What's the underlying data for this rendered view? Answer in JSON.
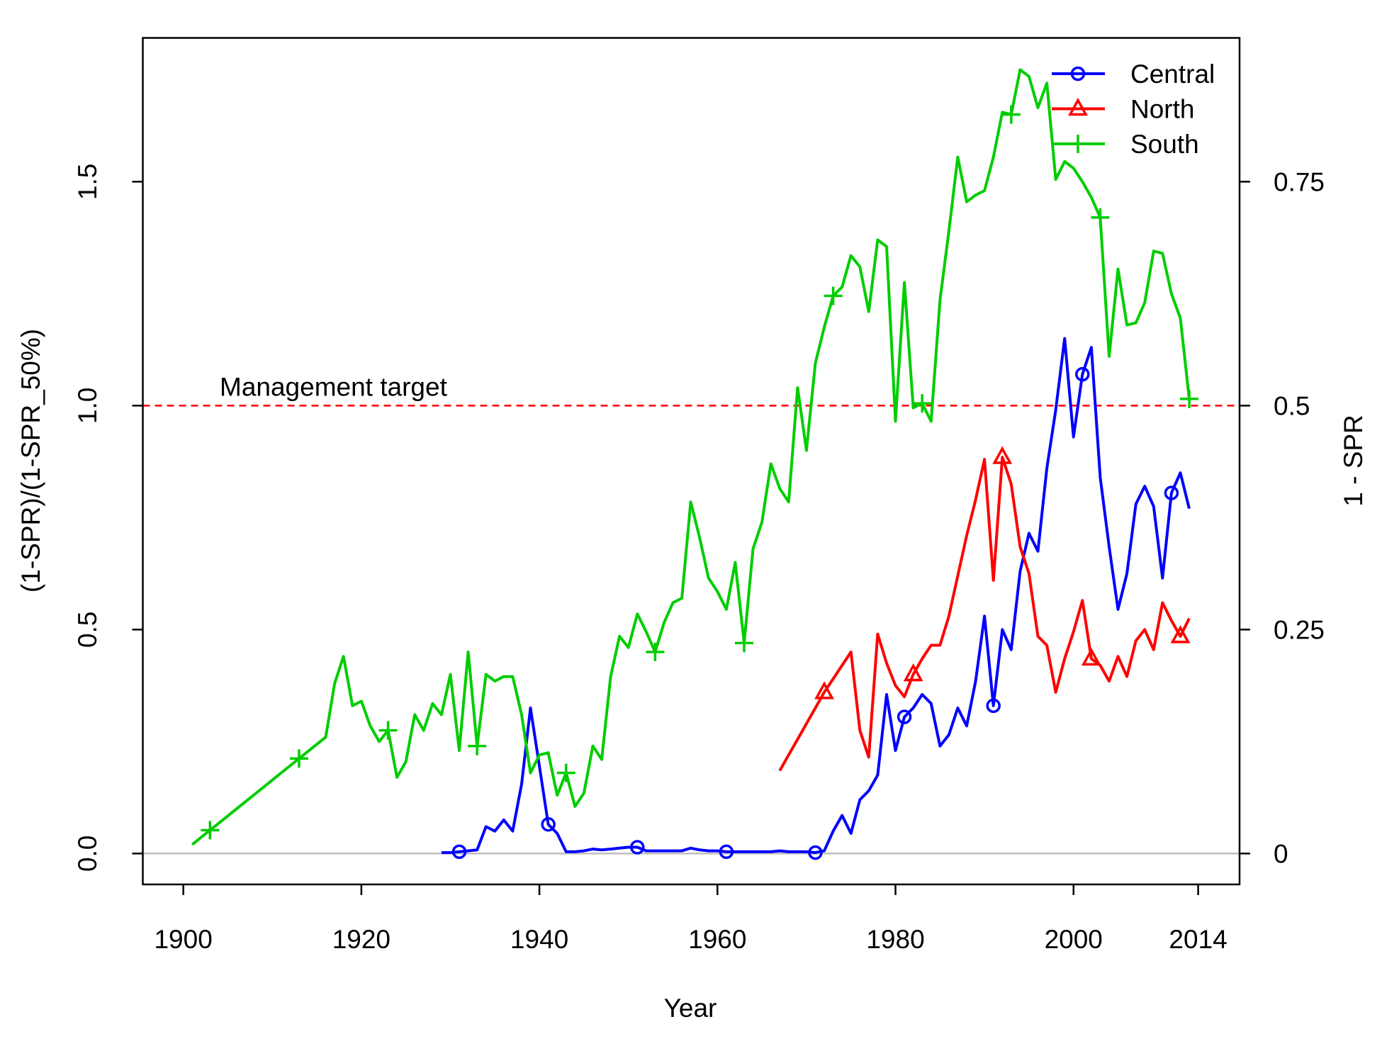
{
  "chart_data": {
    "type": "line",
    "x_label": "Year",
    "y_label": "(1-SPR)/(1-SPR_50%)",
    "y2_label": "1 - SPR",
    "x": [
      1901,
      1902,
      1903,
      1904,
      1905,
      1906,
      1907,
      1908,
      1909,
      1910,
      1911,
      1912,
      1913,
      1914,
      1915,
      1916,
      1917,
      1918,
      1919,
      1920,
      1921,
      1922,
      1923,
      1924,
      1925,
      1926,
      1927,
      1928,
      1929,
      1930,
      1931,
      1932,
      1933,
      1934,
      1935,
      1936,
      1937,
      1938,
      1939,
      1940,
      1941,
      1942,
      1943,
      1944,
      1945,
      1946,
      1947,
      1948,
      1949,
      1950,
      1951,
      1952,
      1953,
      1954,
      1955,
      1956,
      1957,
      1958,
      1959,
      1960,
      1961,
      1962,
      1963,
      1964,
      1965,
      1966,
      1967,
      1968,
      1969,
      1970,
      1971,
      1972,
      1973,
      1974,
      1975,
      1976,
      1977,
      1978,
      1979,
      1980,
      1981,
      1982,
      1983,
      1984,
      1985,
      1986,
      1987,
      1988,
      1989,
      1990,
      1991,
      1992,
      1993,
      1994,
      1995,
      1996,
      1997,
      1998,
      1999,
      2000,
      2001,
      2002,
      2003,
      2004,
      2005,
      2006,
      2007,
      2008,
      2009,
      2010,
      2011,
      2012,
      2013
    ],
    "series": [
      {
        "name": "Central",
        "color": "#0000ff",
        "marker": "circle",
        "values": [
          null,
          null,
          null,
          null,
          null,
          null,
          null,
          null,
          null,
          null,
          null,
          null,
          null,
          null,
          null,
          null,
          null,
          null,
          null,
          null,
          null,
          null,
          null,
          null,
          null,
          null,
          null,
          null,
          0.002,
          0.002,
          0.004,
          0.006,
          0.008,
          0.06,
          0.05,
          0.075,
          0.05,
          0.155,
          0.325,
          0.195,
          0.065,
          0.045,
          0.004,
          0.004,
          0.006,
          0.01,
          0.008,
          0.01,
          0.012,
          0.014,
          0.014,
          0.006,
          0.006,
          0.006,
          0.006,
          0.006,
          0.012,
          0.008,
          0.006,
          0.006,
          0.004,
          0.004,
          0.004,
          0.004,
          0.004,
          0.004,
          0.006,
          0.004,
          0.004,
          0.004,
          0.002,
          0.006,
          0.05,
          0.085,
          0.045,
          0.12,
          0.14,
          0.175,
          0.355,
          0.23,
          0.305,
          0.325,
          0.355,
          0.335,
          0.24,
          0.265,
          0.325,
          0.285,
          0.385,
          0.53,
          0.33,
          0.5,
          0.455,
          0.63,
          0.715,
          0.675,
          0.86,
          0.99,
          1.15,
          0.93,
          1.07,
          1.13,
          0.84,
          0.685,
          0.545,
          0.625,
          0.78,
          0.82,
          0.775,
          0.615,
          0.805,
          0.85,
          0.77
        ]
      },
      {
        "name": "North",
        "color": "#ff0000",
        "marker": "triangle",
        "values": [
          null,
          null,
          null,
          null,
          null,
          null,
          null,
          null,
          null,
          null,
          null,
          null,
          null,
          null,
          null,
          null,
          null,
          null,
          null,
          null,
          null,
          null,
          null,
          null,
          null,
          null,
          null,
          null,
          null,
          null,
          null,
          null,
          null,
          null,
          null,
          null,
          null,
          null,
          null,
          null,
          null,
          null,
          null,
          null,
          null,
          null,
          null,
          null,
          null,
          null,
          null,
          null,
          null,
          null,
          null,
          null,
          null,
          null,
          null,
          null,
          null,
          null,
          null,
          null,
          null,
          null,
          0.185,
          0.22,
          0.255,
          0.29,
          0.325,
          0.36,
          0.39,
          0.42,
          0.45,
          0.275,
          0.215,
          0.49,
          0.425,
          0.375,
          0.35,
          0.4,
          0.435,
          0.465,
          0.465,
          0.53,
          0.62,
          0.71,
          0.79,
          0.88,
          0.61,
          0.885,
          0.825,
          0.685,
          0.625,
          0.485,
          0.465,
          0.36,
          0.435,
          0.495,
          0.565,
          0.435,
          0.42,
          0.385,
          0.44,
          0.395,
          0.475,
          0.5,
          0.455,
          0.56,
          0.52,
          0.485,
          0.525
        ]
      },
      {
        "name": "South",
        "color": "#00cd00",
        "marker": "plus",
        "values": [
          0.02,
          0.036,
          0.052,
          0.068,
          0.084,
          0.1,
          0.116,
          0.132,
          0.148,
          0.164,
          0.18,
          0.196,
          0.212,
          0.228,
          0.244,
          0.26,
          0.38,
          0.44,
          0.33,
          0.34,
          0.285,
          0.25,
          0.275,
          0.17,
          0.205,
          0.31,
          0.275,
          0.335,
          0.31,
          0.4,
          0.23,
          0.45,
          0.24,
          0.4,
          0.385,
          0.395,
          0.395,
          0.31,
          0.18,
          0.22,
          0.225,
          0.13,
          0.18,
          0.105,
          0.135,
          0.24,
          0.21,
          0.395,
          0.485,
          0.46,
          0.535,
          0.495,
          0.45,
          0.515,
          0.56,
          0.57,
          0.785,
          0.705,
          0.615,
          0.585,
          0.545,
          0.65,
          0.47,
          0.68,
          0.74,
          0.87,
          0.815,
          0.785,
          1.04,
          0.9,
          1.095,
          1.175,
          1.245,
          1.265,
          1.335,
          1.31,
          1.21,
          1.37,
          1.355,
          0.965,
          1.275,
          0.995,
          1.005,
          0.965,
          1.235,
          1.39,
          1.555,
          1.455,
          1.47,
          1.48,
          1.555,
          1.655,
          1.65,
          1.75,
          1.735,
          1.665,
          1.72,
          1.505,
          1.545,
          1.53,
          1.5,
          1.465,
          1.42,
          1.11,
          1.305,
          1.18,
          1.185,
          1.23,
          1.345,
          1.34,
          1.25,
          1.195,
          1.015
        ]
      }
    ],
    "xlim": [
      1895.45,
      2018.65
    ],
    "xticks": [
      1900,
      1920,
      1940,
      1960,
      1980,
      2000,
      2014
    ],
    "ylim": [
      -0.069,
      1.821
    ],
    "yticks": [
      {
        "value": 0,
        "label": "0.0"
      },
      {
        "value": 0.5,
        "label": "0.5"
      },
      {
        "value": 1,
        "label": "1.0"
      },
      {
        "value": 1.5,
        "label": "1.5"
      }
    ],
    "y2lim": [
      -0.0345,
      0.9105
    ],
    "y2ticks": [
      0,
      0.25,
      0.5,
      0.75
    ],
    "hlines": [
      {
        "value": 1,
        "label": "Management target",
        "color": "#ff0000",
        "dashed": true
      },
      {
        "value": 0,
        "color": "#bebebe",
        "dashed": false
      }
    ],
    "legend": "top-right"
  }
}
